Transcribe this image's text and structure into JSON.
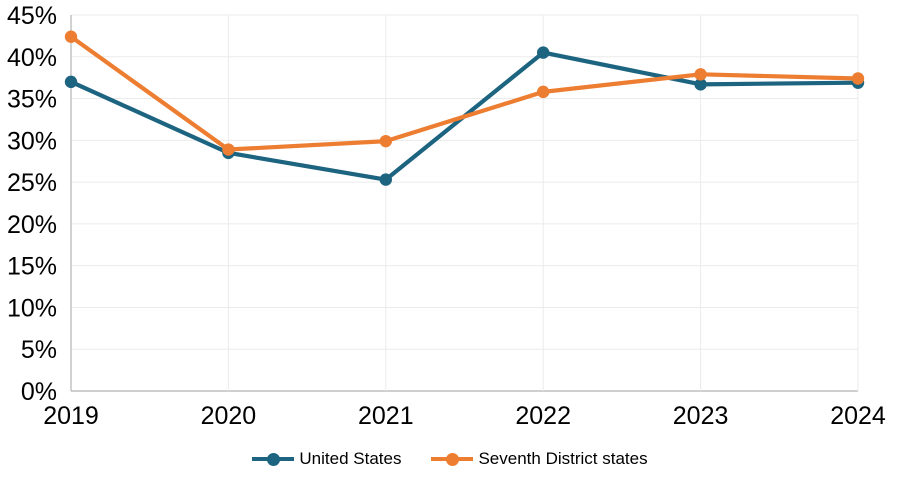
{
  "chart_data": {
    "type": "line",
    "categories": [
      "2019",
      "2020",
      "2021",
      "2022",
      "2023",
      "2024"
    ],
    "series": [
      {
        "name": "United States",
        "color": "#1D6480",
        "values": [
          37.0,
          28.5,
          25.3,
          40.5,
          36.7,
          36.9
        ]
      },
      {
        "name": "Seventh District states",
        "color": "#ED7D31",
        "values": [
          42.4,
          28.9,
          29.9,
          35.8,
          37.9,
          37.4
        ]
      }
    ],
    "ylim": [
      0,
      45
    ],
    "ytick_values": [
      0,
      5,
      10,
      15,
      20,
      25,
      30,
      35,
      40,
      45
    ],
    "ytick_labels": [
      "0%",
      "5%",
      "10%",
      "15%",
      "20%",
      "25%",
      "30%",
      "35%",
      "40%",
      "45%"
    ],
    "grid": true,
    "legend_position": "bottom"
  }
}
